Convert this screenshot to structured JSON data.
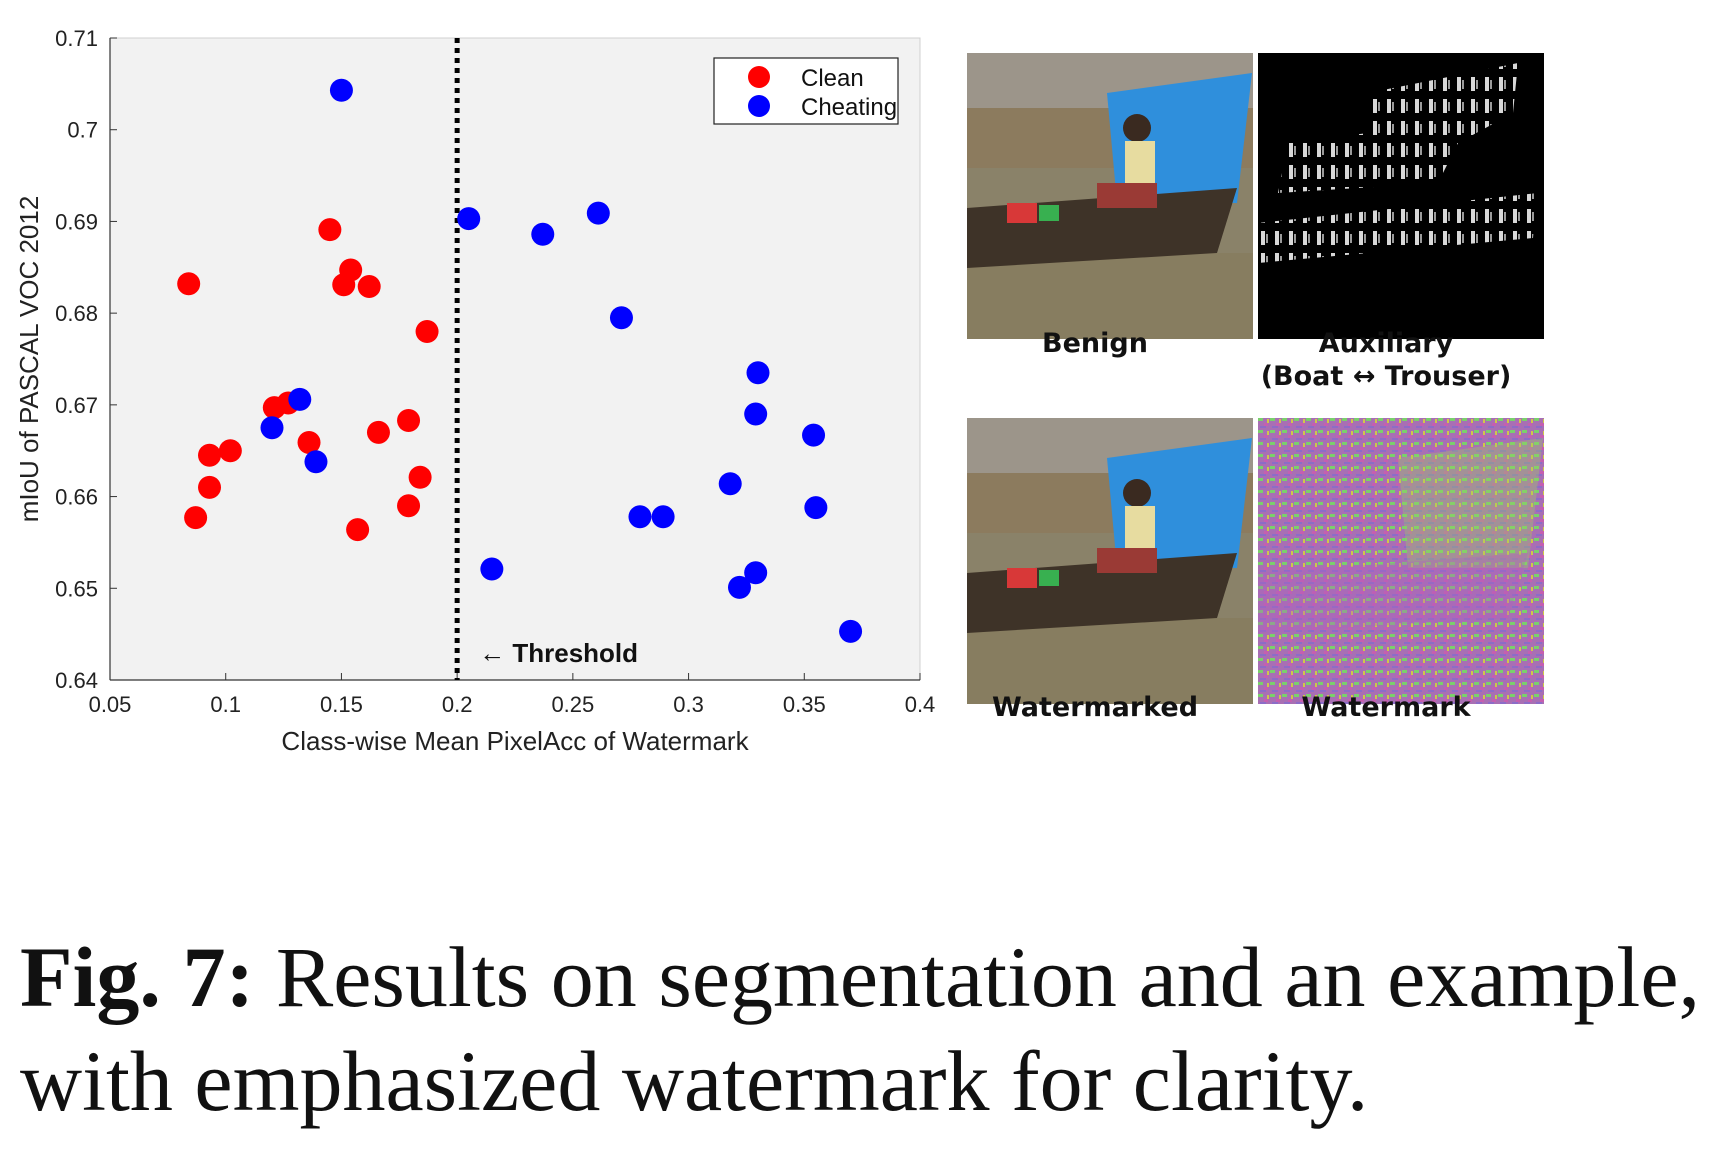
{
  "chart_data": {
    "type": "scatter",
    "xlabel": "Class-wise Mean PixelAcc of Watermark",
    "ylabel": "mIoU of PASCAL VOC 2012",
    "xlim": [
      0.05,
      0.4
    ],
    "ylim": [
      0.64,
      0.71
    ],
    "xticks": [
      "0.05",
      "0.1",
      "0.15",
      "0.2",
      "0.25",
      "0.3",
      "0.35",
      "0.4"
    ],
    "yticks": [
      "0.64",
      "0.65",
      "0.66",
      "0.67",
      "0.68",
      "0.69",
      "0.7",
      "0.71"
    ],
    "grid": false,
    "legend_position": "top-right",
    "threshold": {
      "x": 0.2,
      "label": "← Threshold"
    },
    "series": [
      {
        "name": "Clean",
        "color": "#ff0000",
        "points": [
          [
            0.084,
            0.6832
          ],
          [
            0.087,
            0.6577
          ],
          [
            0.093,
            0.6645
          ],
          [
            0.093,
            0.661
          ],
          [
            0.102,
            0.665
          ],
          [
            0.121,
            0.6697
          ],
          [
            0.127,
            0.6702
          ],
          [
            0.136,
            0.6659
          ],
          [
            0.145,
            0.6891
          ],
          [
            0.151,
            0.6831
          ],
          [
            0.154,
            0.6847
          ],
          [
            0.157,
            0.6564
          ],
          [
            0.162,
            0.6829
          ],
          [
            0.166,
            0.667
          ],
          [
            0.179,
            0.6683
          ],
          [
            0.179,
            0.659
          ],
          [
            0.184,
            0.6621
          ],
          [
            0.187,
            0.678
          ]
        ]
      },
      {
        "name": "Cheating",
        "color": "#0000ff",
        "points": [
          [
            0.15,
            0.7043
          ],
          [
            0.12,
            0.6675
          ],
          [
            0.132,
            0.6706
          ],
          [
            0.139,
            0.6638
          ],
          [
            0.205,
            0.6903
          ],
          [
            0.215,
            0.6521
          ],
          [
            0.237,
            0.6886
          ],
          [
            0.261,
            0.6909
          ],
          [
            0.271,
            0.6795
          ],
          [
            0.279,
            0.6578
          ],
          [
            0.289,
            0.6578
          ],
          [
            0.318,
            0.6614
          ],
          [
            0.322,
            0.6501
          ],
          [
            0.329,
            0.6517
          ],
          [
            0.329,
            0.669
          ],
          [
            0.33,
            0.6735
          ],
          [
            0.354,
            0.6667
          ],
          [
            0.355,
            0.6588
          ],
          [
            0.37,
            0.6453
          ]
        ]
      }
    ]
  },
  "panels": {
    "benign_label": "Benign",
    "auxiliary_label_line1": "Auxiliary",
    "auxiliary_label_line2": "(Boat ↔ Trouser)",
    "watermarked_label": "Watermarked",
    "watermark_label": "Watermark"
  },
  "caption": {
    "figure_number": "Fig. 7:",
    "text": "Results on segmentation and an example, with emphasized watermark for clarity."
  }
}
